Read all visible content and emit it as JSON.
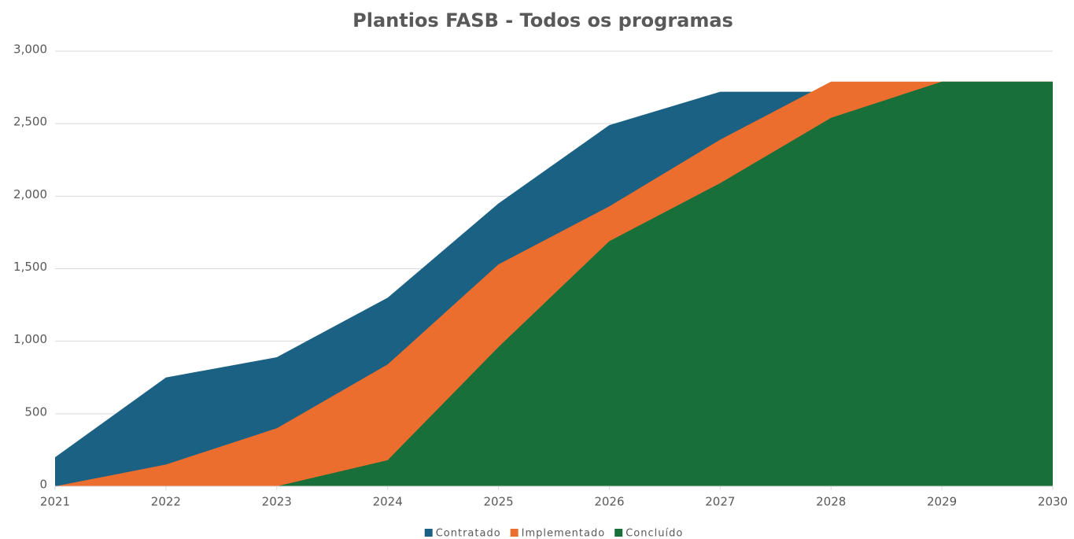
{
  "chart_data": {
    "type": "area",
    "title": "Plantios FASB - Todos os programas",
    "x": [
      2021,
      2022,
      2023,
      2024,
      2025,
      2026,
      2027,
      2028,
      2029,
      2030
    ],
    "series": [
      {
        "name": "Contratado",
        "color": "#1a6183",
        "values": [
          200,
          750,
          890,
          1300,
          1950,
          2490,
          2720,
          2720,
          2720,
          2720
        ]
      },
      {
        "name": "Implementado",
        "color": "#eb6e2f",
        "values": [
          0,
          150,
          400,
          840,
          1530,
          1930,
          2390,
          2790,
          2790,
          2790
        ]
      },
      {
        "name": "Concluído",
        "color": "#186f39",
        "values": [
          0,
          0,
          0,
          180,
          960,
          1690,
          2090,
          2540,
          2790,
          2790
        ]
      }
    ],
    "xlim": [
      2021,
      2030
    ],
    "xticks": [
      2021,
      2022,
      2023,
      2024,
      2025,
      2026,
      2027,
      2028,
      2029,
      2030
    ],
    "ylim": [
      0,
      3000
    ],
    "yticks": [
      0,
      500,
      {
        "value": 1000,
        "label": "1,000"
      },
      {
        "value": 1500,
        "label": "1,500"
      },
      {
        "value": 2000,
        "label": "2,000"
      },
      {
        "value": 2500,
        "label": "2,500"
      },
      {
        "value": 3000,
        "label": "3,000"
      }
    ],
    "grid": true,
    "legend": "bottom"
  }
}
